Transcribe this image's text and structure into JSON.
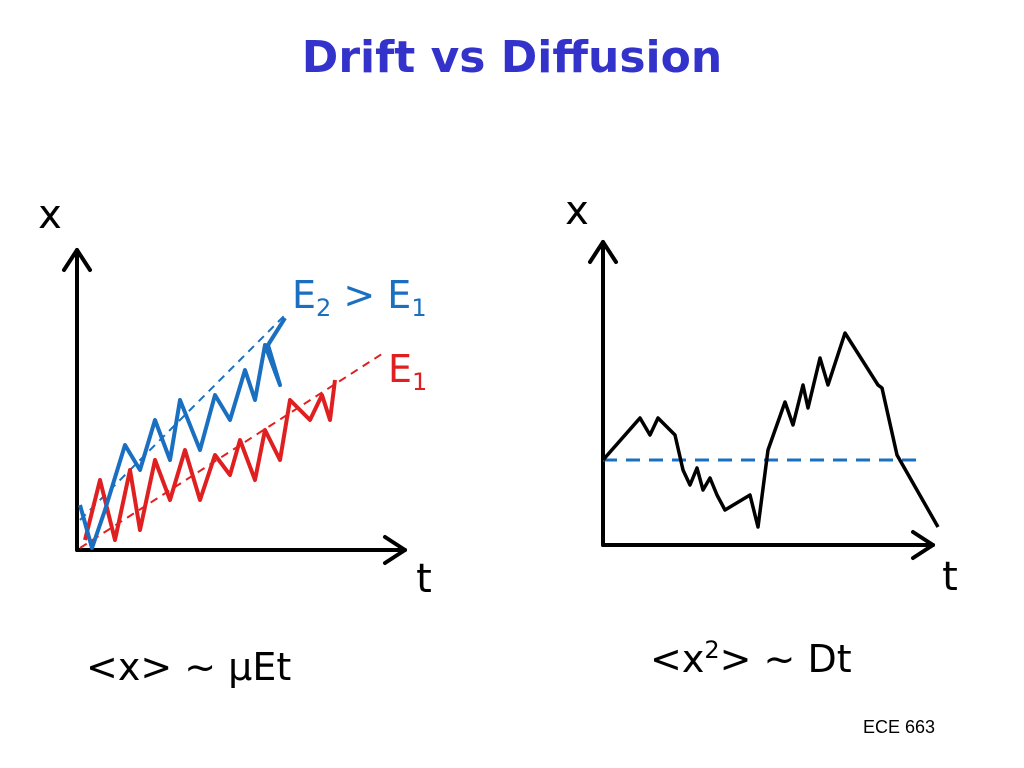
{
  "title": "Drift vs Diffusion",
  "left": {
    "y_label": "x",
    "x_label": "t",
    "e2_label": [
      "E",
      "2",
      " > E",
      "1"
    ],
    "e1_label": [
      "E",
      "1"
    ],
    "formula": "<x> ~ μEt"
  },
  "right": {
    "y_label": "x",
    "x_label": "t",
    "formula": [
      "<x",
      "2",
      "> ~ Dt"
    ]
  },
  "footer": "ECE 663"
}
